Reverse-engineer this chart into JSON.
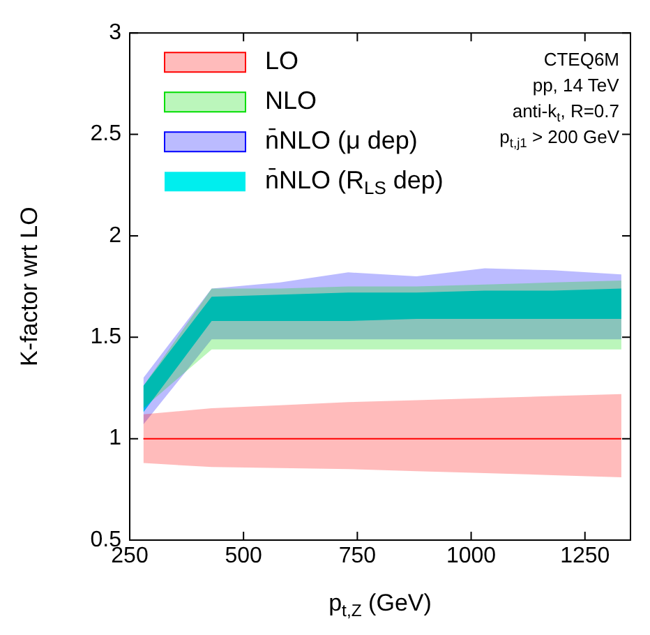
{
  "chart_data": {
    "type": "area",
    "xlabel": "p$_{t,Z}$ (GeV)",
    "ylabel": "K-factor wrt LO",
    "x": [
      280,
      430,
      580,
      730,
      880,
      1030,
      1180,
      1330
    ],
    "series": [
      {
        "name": "LO",
        "type": "line",
        "color": "#ff0000",
        "values": [
          1,
          1,
          1,
          1,
          1,
          1,
          1,
          1
        ],
        "lower": [
          0.88,
          0.86,
          0.855,
          0.85,
          0.84,
          0.83,
          0.82,
          0.81
        ],
        "upper": [
          1.12,
          1.15,
          1.165,
          1.18,
          1.19,
          1.2,
          1.21,
          1.22
        ]
      },
      {
        "name": "NLO",
        "color": "#00dd00",
        "values": [
          null,
          null,
          null,
          null,
          null,
          null,
          null,
          null
        ],
        "lower": [
          1.15,
          1.44,
          1.44,
          1.44,
          1.44,
          1.44,
          1.44,
          1.44
        ],
        "upper": [
          1.26,
          1.74,
          1.74,
          1.75,
          1.75,
          1.76,
          1.77,
          1.78
        ]
      },
      {
        "name": "n̄NLO (μ dep)",
        "color": "#0000ff",
        "values": [
          null,
          null,
          null,
          null,
          null,
          null,
          null,
          null
        ],
        "lower": [
          1.07,
          1.49,
          1.49,
          1.49,
          1.49,
          1.49,
          1.49,
          1.49
        ],
        "upper": [
          1.3,
          1.74,
          1.77,
          1.82,
          1.8,
          1.84,
          1.83,
          1.81
        ]
      },
      {
        "name": "n̄NLO (R$_{LS}$ dep)",
        "color": "#00eeee",
        "values": [
          null,
          null,
          null,
          null,
          null,
          null,
          null,
          null
        ],
        "lower": [
          1.13,
          1.58,
          1.58,
          1.58,
          1.59,
          1.59,
          1.59,
          1.59
        ],
        "upper": [
          1.26,
          1.7,
          1.71,
          1.72,
          1.72,
          1.73,
          1.73,
          1.74
        ]
      }
    ],
    "xlim": [
      250,
      1350
    ],
    "xticks": [
      250,
      500,
      750,
      1000,
      1250
    ],
    "ylim": [
      0.5,
      3
    ],
    "yticks": [
      0.5,
      1,
      1.5,
      2,
      2.5,
      3
    ],
    "grid": false,
    "legend": "top left",
    "annotations": [
      "CTEQ6M",
      "pp, 14 TeV",
      "anti-k$_{t}$, R=0.7",
      "p$_{t,j1}$ > 200 GeV"
    ]
  }
}
